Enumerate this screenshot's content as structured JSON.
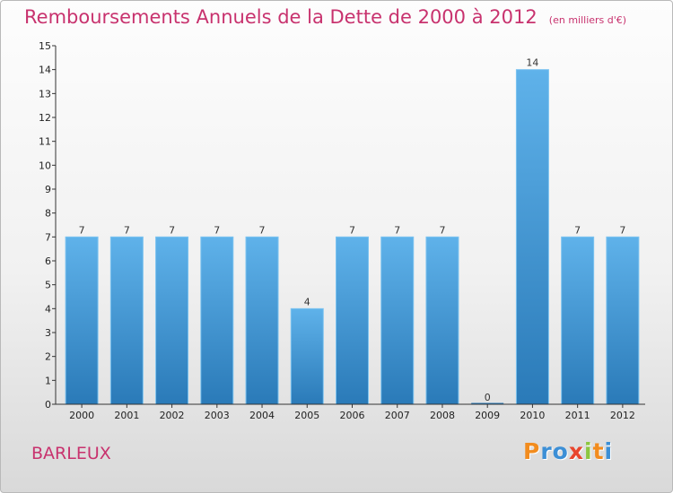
{
  "header": {
    "title": "Remboursements Annuels de la Dette de 2000 à 2012",
    "unit": "(en milliers d'€)"
  },
  "commune": "BARLEUX",
  "logo": {
    "letters": [
      "P",
      "r",
      "o",
      "x",
      "i",
      "t",
      "i"
    ],
    "colors": [
      "#f28c1e",
      "#3c8fd6",
      "#3c8fd6",
      "#e8462e",
      "#8cc63f",
      "#f28c1e",
      "#3c8fd6"
    ]
  },
  "chart_data": {
    "type": "bar",
    "title": "Remboursements Annuels de la Dette de 2000 à 2012",
    "categories": [
      "2000",
      "2001",
      "2002",
      "2003",
      "2004",
      "2005",
      "2006",
      "2007",
      "2008",
      "2009",
      "2010",
      "2011",
      "2012"
    ],
    "values": [
      7,
      7,
      7,
      7,
      7,
      4,
      7,
      7,
      7,
      0,
      14,
      7,
      7
    ],
    "ylim": [
      0,
      15
    ],
    "yticks": [
      "0",
      "1",
      "2",
      "3",
      "4",
      "5",
      "6",
      "7",
      "8",
      "9",
      "10",
      "11",
      "12",
      "13",
      "14",
      "15"
    ],
    "grid": false,
    "bar_color": "#4a9fdc"
  }
}
